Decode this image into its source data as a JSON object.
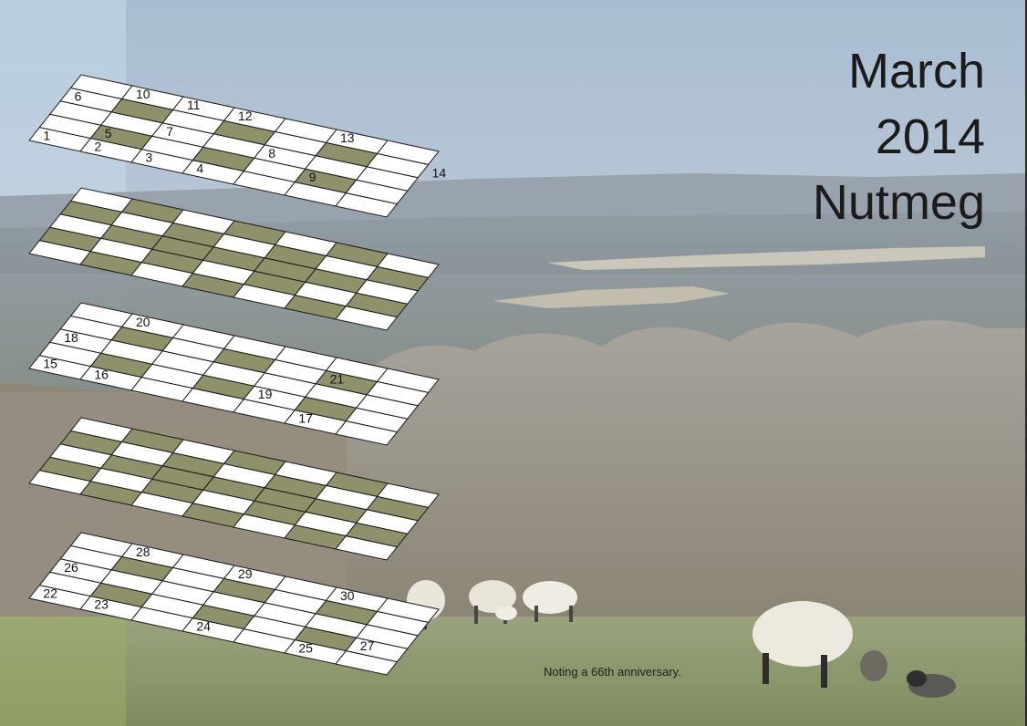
{
  "title": {
    "month": "March",
    "year": "2014",
    "setter": "Nutmeg"
  },
  "caption": "Noting a 66th anniversary.",
  "colors": {
    "shaded_cell": "#8e916a",
    "light_cell": "#ffffff",
    "grid_line": "#1a1a1a",
    "sky": "#b9c7d4",
    "grass": "#8c9a6a"
  },
  "grid": {
    "layers": 5,
    "rows_per_layer": 5,
    "cols_per_layer": 7,
    "clue_numbers": [
      [
        "1",
        "2",
        "3",
        "4",
        "5",
        "6",
        "7",
        "8",
        "9",
        "10",
        "11",
        "12",
        "13",
        "14"
      ],
      [],
      [
        "15",
        "16",
        "17",
        "18",
        "19",
        "20",
        "21"
      ],
      [],
      [
        "22",
        "23",
        "24",
        "25",
        "26",
        "27",
        "28",
        "29",
        "30"
      ]
    ]
  }
}
